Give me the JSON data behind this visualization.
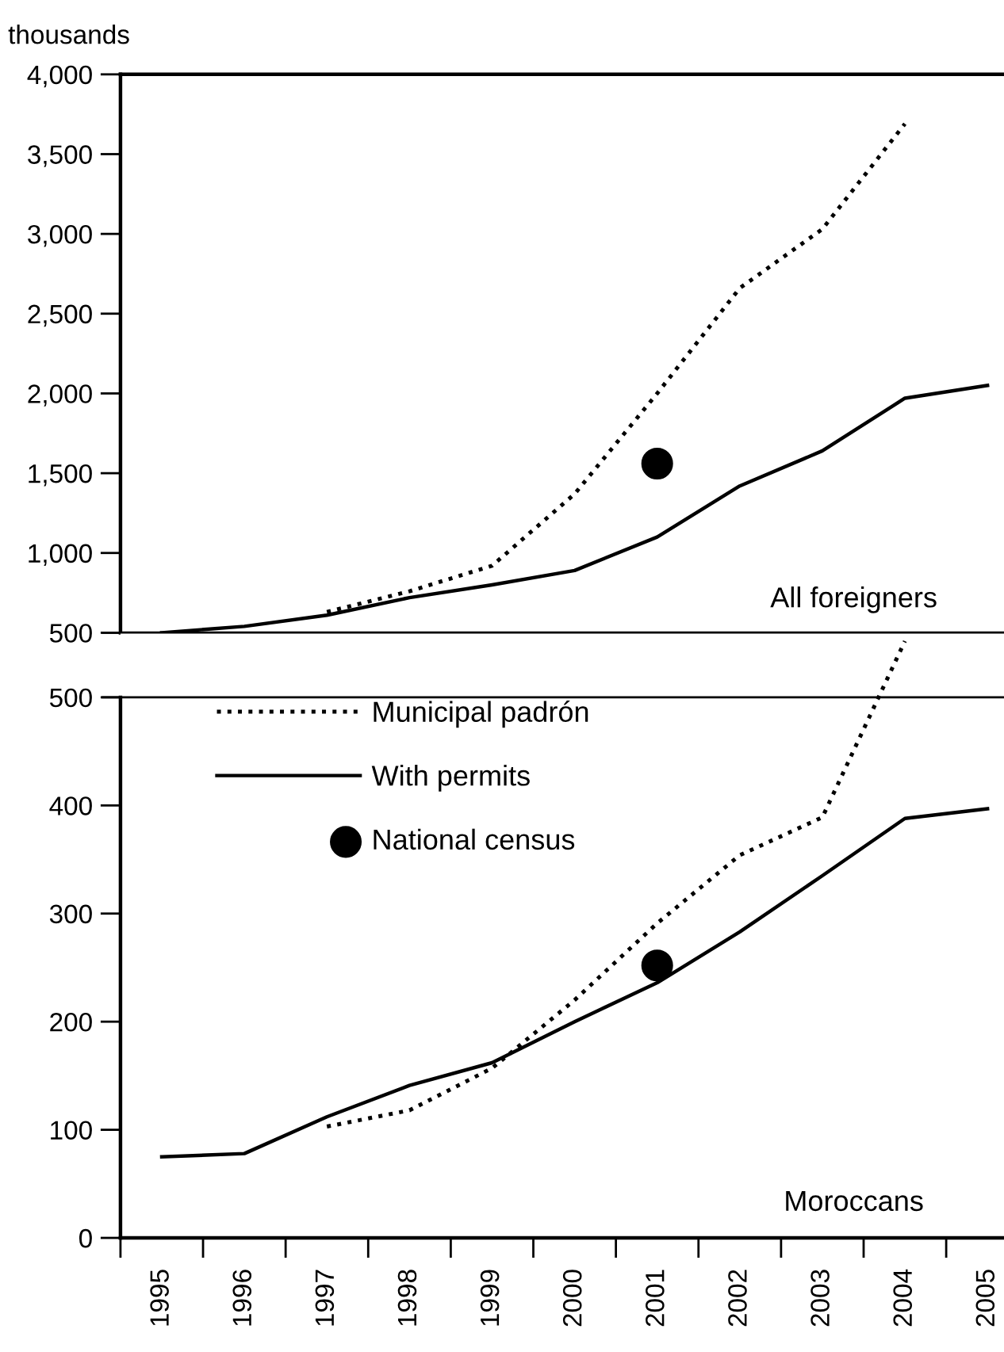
{
  "chart_data": [
    {
      "type": "line",
      "ylabel": "thousands",
      "xlim": [
        1994.5,
        2005.2
      ],
      "ylim": [
        500,
        4000
      ],
      "yticks": [
        {
          "value": 500,
          "label": "500"
        },
        {
          "value": 1000,
          "label": "1,000"
        },
        {
          "value": 1500,
          "label": "1,500"
        },
        {
          "value": 2000,
          "label": "2,000"
        },
        {
          "value": 2500,
          "label": "2,500"
        },
        {
          "value": 3000,
          "label": "3,000"
        },
        {
          "value": 3500,
          "label": "3,500"
        },
        {
          "value": 4000,
          "label": "4,000"
        }
      ],
      "tick_labels": "y",
      "grid": false,
      "legend": false,
      "annotations": [
        "All foreigners"
      ],
      "series": [
        {
          "color": "#000000",
          "line_style": "dotted",
          "x": [
            1997,
            1998,
            1999,
            2000,
            2001,
            2002,
            2003,
            2004
          ],
          "values": [
            630,
            760,
            920,
            1370,
            2000,
            2660,
            3030,
            3690
          ]
        },
        {
          "color": "#000000",
          "line_style": "solid",
          "x": [
            1995,
            1996,
            1997,
            1998,
            1999,
            2000,
            2001,
            2002,
            2003,
            2004,
            2005
          ],
          "values": [
            500,
            540,
            610,
            720,
            800,
            890,
            1100,
            1420,
            1640,
            1970,
            2050
          ]
        },
        {
          "type": "scatter",
          "color": "#000000",
          "marker": "circle",
          "x": [
            2001
          ],
          "values": [
            1560
          ]
        }
      ]
    },
    {
      "type": "line",
      "xlim": [
        1994.5,
        2005.2
      ],
      "ylim": [
        0,
        560
      ],
      "xticks": [
        {
          "value": 1994.5,
          "label": null
        },
        {
          "value": 1995.5,
          "label": null
        },
        {
          "value": 1996.5,
          "label": null
        },
        {
          "value": 1997.5,
          "label": null
        },
        {
          "value": 1998.5,
          "label": null
        },
        {
          "value": 1999.5,
          "label": null
        },
        {
          "value": 2000.5,
          "label": null
        },
        {
          "value": 2001.5,
          "label": null
        },
        {
          "value": 2002.5,
          "label": null
        },
        {
          "value": 2003.5,
          "label": null
        },
        {
          "value": 2004.5,
          "label": null
        },
        1995,
        1996,
        1997,
        1998,
        1999,
        2000,
        2001,
        2002,
        2003,
        2004,
        2005
      ],
      "yticks": [
        0,
        100,
        200,
        300,
        400,
        500
      ],
      "grid": false,
      "legend": "top left",
      "annotations": [
        "Moroccans"
      ],
      "ref_lines": [
        {
          "axis": "y",
          "value": 500,
          "label": null,
          "color": "#000000"
        }
      ],
      "series": [
        {
          "name": "Municipal padrón",
          "color": "#000000",
          "line_style": "dotted",
          "x": [
            1997,
            1998,
            1999,
            2000,
            2001,
            2002,
            2003,
            2004
          ],
          "values": [
            103,
            118,
            157,
            220,
            291,
            354,
            389,
            552
          ]
        },
        {
          "name": "With permits",
          "color": "#000000",
          "line_style": "solid",
          "x": [
            1995,
            1996,
            1997,
            1998,
            1999,
            2000,
            2001,
            2002,
            2003,
            2004,
            2005
          ],
          "values": [
            75,
            78,
            112,
            141,
            162,
            200,
            236,
            283,
            335,
            388,
            397
          ]
        },
        {
          "type": "scatter",
          "name": "National census",
          "color": "#000000",
          "marker": "circle",
          "x": [
            2001
          ],
          "values": [
            252
          ]
        }
      ]
    }
  ]
}
